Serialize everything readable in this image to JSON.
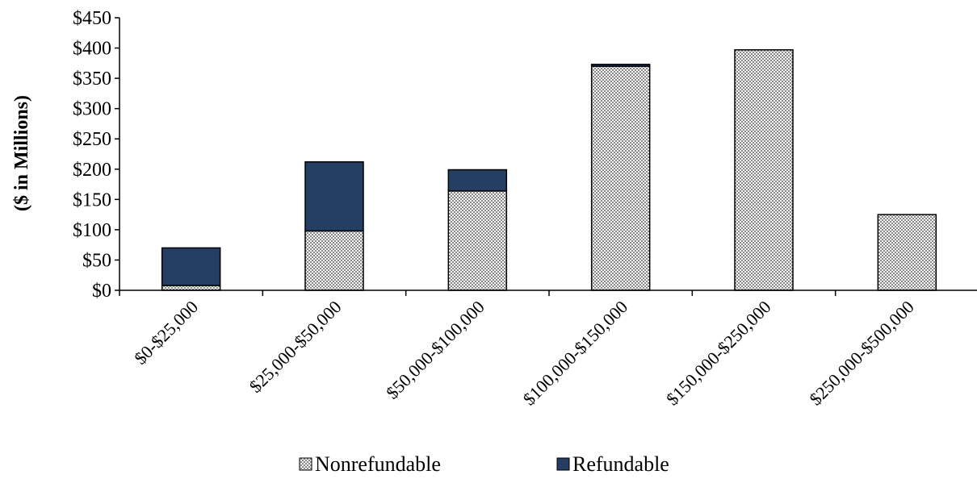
{
  "chart_data": {
    "type": "bar",
    "stacked": true,
    "title": "",
    "xlabel": "",
    "ylabel": "($ in Millions)",
    "categories": [
      "$0-$25,000",
      "$25,000-$50,000",
      "$50,000-$100,000",
      "$100,000-$150,000",
      "$150,000-$250,000",
      "$250,000-$500,000"
    ],
    "series": [
      {
        "name": "Nonrefundable",
        "values": [
          8,
          98,
          164,
          370,
          397,
          125
        ],
        "color": "#c8c8c8",
        "pattern": "checkered"
      },
      {
        "name": "Refundable",
        "values": [
          62,
          114,
          35,
          3,
          0,
          0
        ],
        "color": "#243f63"
      }
    ],
    "ylim": [
      0,
      450
    ],
    "yticks": [
      0,
      50,
      100,
      150,
      200,
      250,
      300,
      350,
      400,
      450
    ],
    "ytick_labels": [
      "$0",
      "$50",
      "$100",
      "$150",
      "$200",
      "$250",
      "$300",
      "$350",
      "$400",
      "$450"
    ],
    "grid": false,
    "legend_position": "bottom"
  }
}
